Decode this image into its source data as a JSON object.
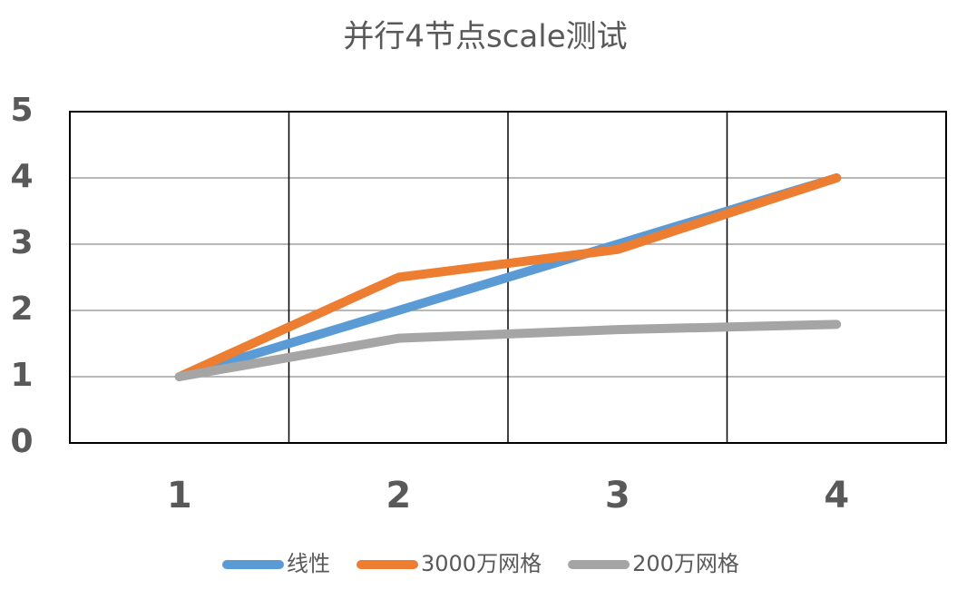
{
  "chart_data": {
    "type": "line",
    "title": "并行4节点scale测试",
    "categories": [
      "1",
      "2",
      "3",
      "4"
    ],
    "series": [
      {
        "name": "线性",
        "color": "#5b9bd5",
        "values": [
          1,
          2,
          3,
          4
        ]
      },
      {
        "name": "3000万网格",
        "color": "#ed7d31",
        "values": [
          1,
          2.5,
          2.92,
          4
        ]
      },
      {
        "name": "200万网格",
        "color": "#a5a5a5",
        "values": [
          1,
          1.58,
          1.71,
          1.79
        ]
      }
    ],
    "ylim": [
      0,
      5
    ],
    "yticks": [
      0,
      1,
      2,
      3,
      4,
      5
    ],
    "grid": true,
    "legend": "bottom"
  }
}
